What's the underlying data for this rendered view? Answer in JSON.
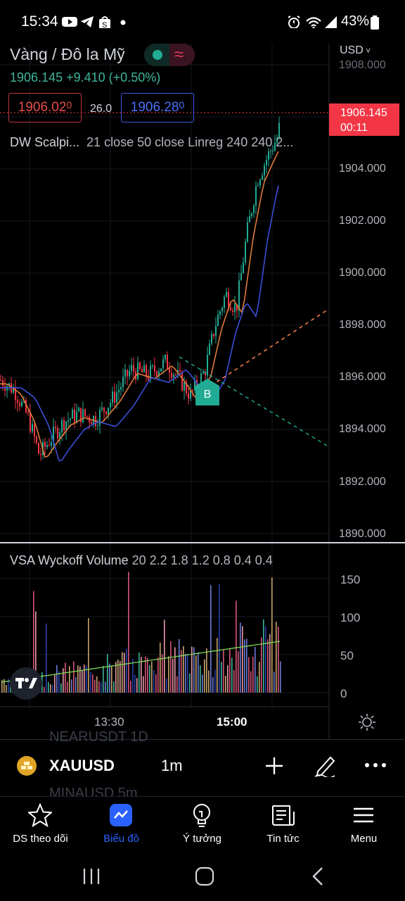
{
  "status_bar": {
    "time": "15:34",
    "battery": "43%"
  },
  "header": {
    "symbol_title": "Vàng / Đô la Mỹ",
    "last_price": "1906.145",
    "change": "+9.410",
    "change_pct": "(+0.50%)",
    "bid": "1906.02",
    "bid_sup": "0",
    "spread": "26.0",
    "ask": "1906.28",
    "ask_sup": "0",
    "currency": "USD"
  },
  "indicator": {
    "name": "DW Scalpi...",
    "params": "21 close 50 close Linreg 240 240 2..."
  },
  "price_axis": {
    "labels": [
      "1908.000",
      "1904.000",
      "1902.000",
      "1900.000",
      "1898.000",
      "1896.000",
      "1894.000",
      "1892.000",
      "1890.000"
    ],
    "current_price": "1906.145",
    "countdown": "00:11"
  },
  "volume_pane": {
    "title": "VSA Wyckoff Volume",
    "params": "20 2.2 1.8 1.2 0.8 0.4 0.4",
    "labels": [
      "150",
      "100",
      "50",
      "0"
    ]
  },
  "time_axis": {
    "labels": [
      "13:30",
      "15:00"
    ]
  },
  "toolbar": {
    "ghost_above": "NEARUSDT  1D",
    "ghost_below": "MINAUSD  5m",
    "ticker": "XAUUSD",
    "interval": "1m"
  },
  "nav": {
    "items": [
      {
        "label": "DS theo dõi",
        "icon": "star-icon"
      },
      {
        "label": "Biểu đồ",
        "icon": "chart-icon"
      },
      {
        "label": "Ý tưởng",
        "icon": "lightbulb-icon"
      },
      {
        "label": "Tin tức",
        "icon": "news-icon"
      },
      {
        "label": "Menu",
        "icon": "menu-icon"
      }
    ]
  },
  "marker": {
    "label": "B"
  },
  "colors": {
    "up": "#22ab94",
    "down": "#f23645",
    "accent": "#2962ff",
    "ema21": "#e07b39",
    "ema50": "#3b4fd6"
  }
}
